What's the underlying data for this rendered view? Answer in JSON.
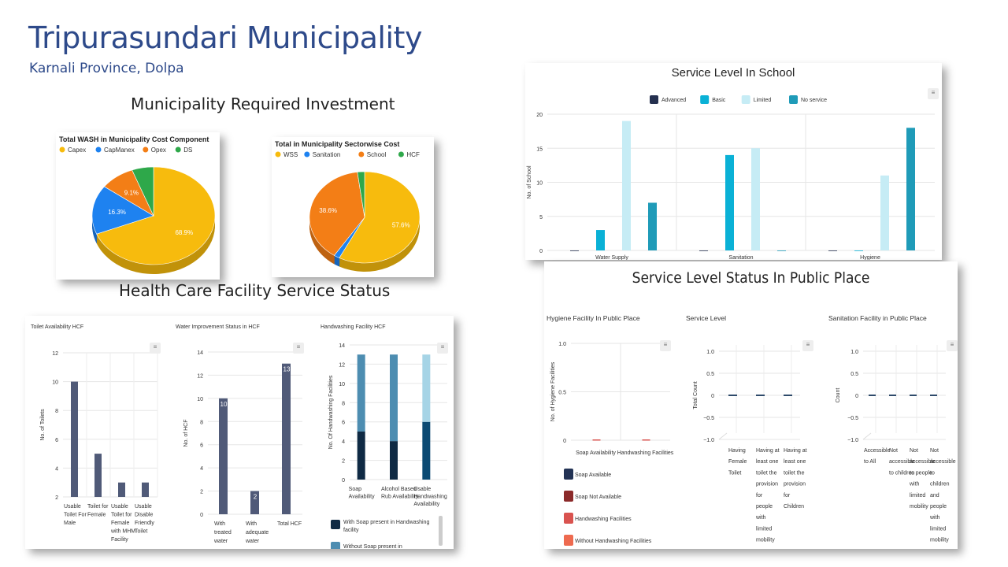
{
  "header": {
    "title": "Tripurasundari Municipality",
    "subtitle": "Karnali Province, Dolpa"
  },
  "sections": {
    "investment_title": "Municipality Required Investment",
    "hcf_title": "Health Care Facility Service Status"
  },
  "chart_data": [
    {
      "id": "cost_component",
      "type": "pie",
      "title": "Total WASH in Municipality Cost Component",
      "labels": [
        "Capex",
        "CapManex",
        "Opex",
        "DS"
      ],
      "values": [
        68.9,
        16.3,
        9.1,
        5.7
      ],
      "value_labels": [
        "68.9%",
        "16.3%",
        "9.1%",
        ""
      ],
      "colors": [
        "#f7bb0d",
        "#1e82f0",
        "#f37e16",
        "#2ea84a"
      ],
      "legend": "top"
    },
    {
      "id": "sectorwise",
      "type": "pie",
      "title": "Total in Municipality Sectorwise Cost",
      "labels": [
        "WSS",
        "Sanitation",
        "School",
        "HCF"
      ],
      "values": [
        57.6,
        1.7,
        38.6,
        2.1
      ],
      "value_labels": [
        "57.6%",
        "",
        "38.6%",
        ""
      ],
      "colors": [
        "#f7bb0d",
        "#1e82f0",
        "#f37e16",
        "#2ea84a"
      ],
      "legend": "top"
    },
    {
      "id": "school",
      "type": "bar",
      "title": "Service Level In School",
      "categories": [
        "Water Supply",
        "Sanitation",
        "Hygiene"
      ],
      "series": [
        {
          "name": "Advanced",
          "values": [
            0,
            0,
            0
          ],
          "color": "#25304f"
        },
        {
          "name": "Basic",
          "values": [
            3,
            14,
            0
          ],
          "color": "#0ab1d6"
        },
        {
          "name": "Limited",
          "values": [
            19,
            15,
            11
          ],
          "color": "#c6ecf5"
        },
        {
          "name": "No service",
          "values": [
            7,
            0,
            18
          ],
          "color": "#1f9bb8"
        }
      ],
      "ylabel": "No. of School",
      "ylim": [
        0,
        20
      ],
      "yticks": [
        "0",
        "5",
        "10",
        "15",
        "20"
      ],
      "legend": "top"
    },
    {
      "id": "toilet_hcf",
      "type": "bar",
      "title": "Toilet Availability HCF",
      "categories": [
        [
          "Usable",
          "Toilet For",
          "Male"
        ],
        [
          "Toilet for",
          "Female"
        ],
        [
          "Usable",
          "Toilet for",
          "Female",
          "with MHM",
          "Facility"
        ],
        [
          "Usable",
          "Disable",
          "Friendly",
          "Toilet"
        ]
      ],
      "values": [
        10,
        5,
        3,
        3
      ],
      "ylabel": "No. of Toilets",
      "ylim": [
        2,
        12
      ],
      "yticks": [
        "2",
        "4",
        "6",
        "8",
        "10",
        "12"
      ]
    },
    {
      "id": "water_hcf",
      "type": "bar",
      "title": "Water Improvement Status in HCF",
      "categories": [
        [
          "With",
          "treated",
          "water"
        ],
        [
          "With",
          "adequate",
          "water"
        ],
        [
          "Total HCF"
        ]
      ],
      "values": [
        10,
        2,
        13
      ],
      "value_labels": [
        "10",
        "2",
        "13"
      ],
      "ylabel": "No. of HCF",
      "ylim": [
        0,
        14
      ],
      "yticks": [
        "0",
        "2",
        "4",
        "6",
        "8",
        "10",
        "12",
        "14"
      ]
    },
    {
      "id": "handwash_hcf",
      "type": "bar",
      "title": "Handwashing Facility HCF",
      "categories": [
        [
          "Soap",
          "Availability"
        ],
        [
          "Alcohol Based",
          "Rub Availability"
        ],
        [
          "Usable",
          "Handwashing",
          "Availability"
        ]
      ],
      "series": [
        {
          "name": "With Soap present in Handwashing facility",
          "values": [
            5,
            4,
            6
          ],
          "color": "#0f2a44"
        },
        {
          "name": "Without Soap present in",
          "values": [
            8,
            9,
            7
          ],
          "color": "#4d8db1"
        }
      ],
      "ylabel": "No. Of Handwashing Facilities",
      "ylim": [
        0,
        14
      ],
      "yticks": [
        "0",
        "2",
        "4",
        "6",
        "8",
        "10",
        "12",
        "14"
      ]
    },
    {
      "id": "hygiene_public",
      "type": "bar",
      "title": "Hygiene Facility In Public Place",
      "categories": [
        "Soap Availability",
        "Handwashing Facilities"
      ],
      "series": [
        {
          "name": "Soap Available",
          "values": [
            0,
            0
          ],
          "color": "#233355"
        },
        {
          "name": "Soap Not Available",
          "values": [
            0,
            0
          ],
          "color": "#8b2a2a"
        },
        {
          "name": "Handwashing Facilities",
          "values": [
            0,
            0
          ],
          "color": "#d9534f"
        },
        {
          "name": "Without Handwashing Facilities",
          "values": [
            0,
            0
          ],
          "color": "#ee6a4f"
        }
      ],
      "ylabel": "No. of Hygiene Facilities",
      "ylim": [
        0,
        1
      ],
      "yticks": [
        "0",
        "0.5",
        "1.0"
      ]
    },
    {
      "id": "service_level_public",
      "type": "bar",
      "title": "Service Level",
      "categories": [
        [
          "Having",
          "Female",
          "Toilet"
        ],
        [
          "Having at",
          "least one",
          "toilet the",
          "provision",
          "for",
          "people",
          "with",
          "limited",
          "mobility"
        ],
        [
          "Having at",
          "least one",
          "toilet the",
          "provision",
          "for",
          "Children"
        ]
      ],
      "values": [
        0,
        0,
        0
      ],
      "ylabel": "Total Count",
      "ylim": [
        -1,
        1
      ],
      "yticks": [
        "−1.0",
        "−0.5",
        "0",
        "0.5",
        "1.0"
      ]
    },
    {
      "id": "sanitation_public",
      "type": "bar",
      "title": "Sanitation Facility in Public Place",
      "categories": [
        [
          "Accessible",
          "to All"
        ],
        [
          "Not",
          "accessible",
          "to children"
        ],
        [
          "Not",
          "accessible",
          "to people",
          "with",
          "limited",
          "mobility"
        ],
        [
          "Not",
          "accessible",
          "to",
          "children",
          "and",
          "people",
          "with",
          "limited",
          "mobility"
        ]
      ],
      "values": [
        0,
        0,
        0,
        0
      ],
      "ylabel": "Count",
      "ylim": [
        -1,
        1
      ],
      "yticks": [
        "−1.0",
        "−0.5",
        "0",
        "0.5",
        "1.0"
      ]
    }
  ],
  "public_title": "Service Level Status In Public Place",
  "menu_glyph": "≡"
}
